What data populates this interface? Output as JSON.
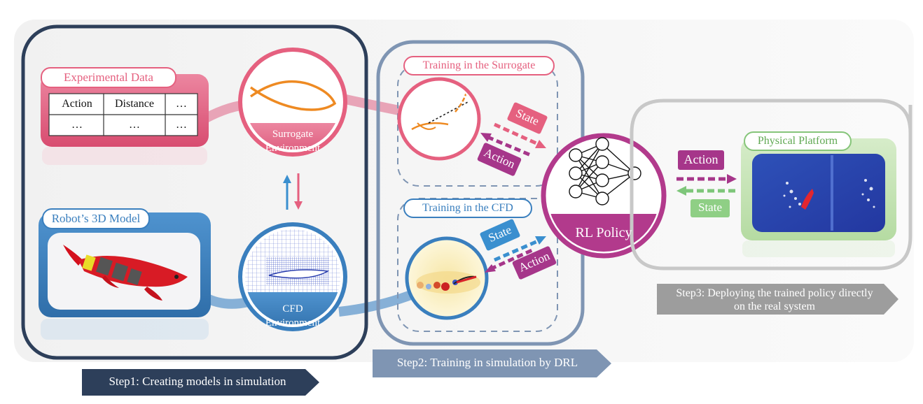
{
  "step1": {
    "experimental_data": {
      "title": "Experimental Data",
      "table": {
        "headers": [
          "Action",
          "Distance",
          "…"
        ],
        "rows": [
          [
            "…",
            "…",
            "…"
          ]
        ]
      }
    },
    "surrogate_env": {
      "line1": "Surrogate",
      "line2": "Environment"
    },
    "robot_model": {
      "title": "Robot’s 3D Model"
    },
    "cfd_env": {
      "line1": "CFD",
      "line2": "Environment"
    },
    "banner": "Step1: Creating models in simulation"
  },
  "step2": {
    "surrogate_training": {
      "title": "Training in the Surrogate",
      "state": "State",
      "action": "Action"
    },
    "cfd_training": {
      "title": "Training in the CFD",
      "state": "State",
      "action": "Action"
    },
    "rl_policy": "RL Policy",
    "banner": "Step2: Training in simulation by DRL"
  },
  "step3": {
    "platform_title": "Physical Platform",
    "action": "Action",
    "state": "State",
    "banner_line1": "Step3: Deploying the trained policy directly",
    "banner_line2": "on the real system"
  },
  "colors": {
    "step1_border": "#2d3f5a",
    "pink": "#e5607f",
    "blue": "#3a7fbe",
    "magenta": "#b23a8c",
    "step2_border": "#7f95b3",
    "step3_border": "#c8c8c8",
    "green": "#86c57a"
  }
}
